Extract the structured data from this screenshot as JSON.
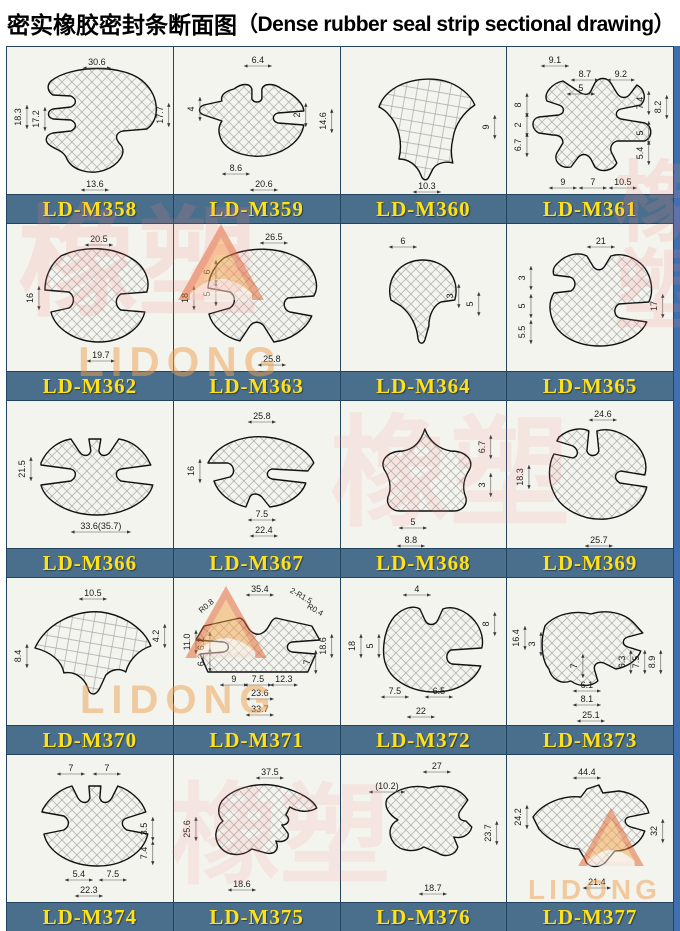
{
  "title": {
    "zh": "密实橡胶密封条断面图",
    "en": "（Dense rubber seal strip sectional drawing）"
  },
  "watermark": {
    "brand": "LIDONG",
    "chars": "橡塑"
  },
  "colors": {
    "label_bar": "#4a6f8c",
    "label_text": "#ffe11a",
    "frame": "#23435e",
    "cell_bg": "#f3f4ee",
    "right_strip": "#3f6fae",
    "hatch": "#a8a8a8",
    "line": "#111111"
  },
  "rows": [
    {
      "cells": [
        {
          "id": "LD-M358",
          "shape": "m358",
          "dims": [
            [
              "30.6",
              90,
              16,
              "h"
            ],
            [
              "18.3",
              14,
              70,
              "v"
            ],
            [
              "17.2",
              32,
              72,
              "v"
            ],
            [
              "17.7",
              156,
              68,
              "v"
            ],
            [
              "13.6",
              88,
              138,
              "h"
            ]
          ]
        },
        {
          "id": "LD-M359",
          "shape": "m359",
          "dims": [
            [
              "6.4",
              84,
              14,
              "h"
            ],
            [
              "4",
              20,
              62,
              "v"
            ],
            [
              "2",
              126,
              68,
              "v"
            ],
            [
              "14.6",
              152,
              74,
              "v"
            ],
            [
              "8.6",
              62,
              122,
              "h"
            ],
            [
              "20.6",
              90,
              138,
              "h"
            ]
          ]
        },
        {
          "id": "LD-M360",
          "shape": "m360",
          "dims": [
            [
              "9",
              148,
              80,
              "v"
            ],
            [
              "10.3",
              86,
              140,
              "h"
            ]
          ]
        },
        {
          "id": "LD-M361",
          "shape": "m361",
          "dims": [
            [
              "9.1",
              48,
              14,
              "h"
            ],
            [
              "8.7",
              78,
              28,
              "h"
            ],
            [
              "9.2",
              114,
              28,
              "h"
            ],
            [
              "5",
              74,
              42,
              "h"
            ],
            [
              "8",
              14,
              58,
              "v"
            ],
            [
              "2",
              14,
              78,
              "v"
            ],
            [
              "6.7",
              14,
              98,
              "v"
            ],
            [
              "7.4",
              136,
              56,
              "v"
            ],
            [
              "8.2",
              154,
              60,
              "v"
            ],
            [
              "5",
              136,
              86,
              "v"
            ],
            [
              "5.4",
              136,
              106,
              "v"
            ],
            [
              "9",
              56,
              136,
              "h"
            ],
            [
              "7",
              86,
              136,
              "h"
            ],
            [
              "10.5",
              116,
              136,
              "h"
            ]
          ]
        }
      ]
    },
    {
      "cells": [
        {
          "id": "LD-M362",
          "shape": "m362",
          "dims": [
            [
              "20.5",
              92,
              16,
              "h"
            ],
            [
              "16",
              26,
              74,
              "v"
            ],
            [
              "19.7",
              94,
              132,
              "h"
            ]
          ]
        },
        {
          "id": "LD-M363",
          "shape": "m363",
          "dims": [
            [
              "26.5",
              100,
              14,
              "h"
            ],
            [
              "6",
              36,
              48,
              "v"
            ],
            [
              "5",
              36,
              70,
              "v"
            ],
            [
              "18",
              14,
              74,
              "v"
            ],
            [
              "25.8",
              98,
              136,
              "h"
            ]
          ]
        },
        {
          "id": "LD-M364",
          "shape": "m364",
          "dims": [
            [
              "6",
              62,
              18,
              "h"
            ],
            [
              "3",
              112,
              72,
              "v"
            ],
            [
              "5",
              132,
              80,
              "v"
            ]
          ]
        },
        {
          "id": "LD-M365",
          "shape": "m365",
          "dims": [
            [
              "21",
              94,
              18,
              "h"
            ],
            [
              "3",
              18,
              54,
              "v"
            ],
            [
              "5",
              18,
              82,
              "v"
            ],
            [
              "5.5",
              18,
              108,
              "v"
            ],
            [
              "17",
              150,
              82,
              "v"
            ]
          ]
        }
      ]
    },
    {
      "cells": [
        {
          "id": "LD-M366",
          "shape": "m366",
          "dims": [
            [
              "21.5",
              18,
              68,
              "v"
            ],
            [
              "33.6(35.7)",
              94,
              126,
              "h"
            ]
          ]
        },
        {
          "id": "LD-M367",
          "shape": "m367",
          "dims": [
            [
              "25.8",
              88,
              16,
              "h"
            ],
            [
              "16",
              20,
              70,
              "v"
            ],
            [
              "7.5",
              88,
              114,
              "h"
            ],
            [
              "22.4",
              90,
              130,
              "h"
            ]
          ]
        },
        {
          "id": "LD-M368",
          "shape": "m368",
          "dims": [
            [
              "6.7",
              144,
              46,
              "v"
            ],
            [
              "3",
              144,
              84,
              "v"
            ],
            [
              "5",
              72,
              122,
              "h"
            ],
            [
              "8.8",
              70,
              140,
              "h"
            ]
          ]
        },
        {
          "id": "LD-M369",
          "shape": "m369",
          "dims": [
            [
              "24.6",
              96,
              14,
              "h"
            ],
            [
              "18.3",
              16,
              76,
              "v"
            ],
            [
              "25.7",
              92,
              140,
              "h"
            ]
          ]
        }
      ]
    },
    {
      "cells": [
        {
          "id": "LD-M370",
          "shape": "m370",
          "dims": [
            [
              "10.5",
              86,
              16,
              "h"
            ],
            [
              "8.4",
              14,
              78,
              "v"
            ],
            [
              "4.2",
              152,
              58,
              "v"
            ]
          ]
        },
        {
          "id": "LD-M371",
          "shape": "m371",
          "dims": [
            [
              "35.4",
              86,
              12,
              "h"
            ],
            [
              "R0.8",
              34,
              30,
              "d",
              -40
            ],
            [
              "2-R1.5",
              126,
              20,
              "d",
              30
            ],
            [
              "R0.4",
              140,
              34,
              "d",
              30
            ],
            [
              "11.0",
              16,
              64,
              "v"
            ],
            [
              "6.2",
              30,
              66,
              "v"
            ],
            [
              "6.2",
              30,
              82,
              "v"
            ],
            [
              "18.6",
              152,
              68,
              "v"
            ],
            [
              "7",
              136,
              84,
              "v"
            ],
            [
              "9",
              60,
              102,
              "h"
            ],
            [
              "7.5",
              84,
              102,
              "h"
            ],
            [
              "12.3",
              110,
              102,
              "h"
            ],
            [
              "23.6",
              86,
              116,
              "h"
            ],
            [
              "33.7",
              86,
              132,
              "h"
            ]
          ]
        },
        {
          "id": "LD-M372",
          "shape": "m372",
          "dims": [
            [
              "4",
              76,
              12,
              "h"
            ],
            [
              "18",
              14,
              68,
              "v"
            ],
            [
              "5",
              32,
              68,
              "v"
            ],
            [
              "8",
              148,
              46,
              "v"
            ],
            [
              "7.5",
              54,
              114,
              "h"
            ],
            [
              "6.5",
              98,
              114,
              "h"
            ],
            [
              "22",
              80,
              134,
              "h"
            ]
          ]
        },
        {
          "id": "LD-M373",
          "shape": "m373",
          "dims": [
            [
              "16.4",
              12,
              60,
              "v"
            ],
            [
              "3",
              28,
              66,
              "v"
            ],
            [
              "7",
              70,
              88,
              "v"
            ],
            [
              "6.3",
              118,
              84,
              "v"
            ],
            [
              "7.5",
              132,
              84,
              "v"
            ],
            [
              "8.9",
              148,
              84,
              "v"
            ],
            [
              "6.1",
              80,
              108,
              "h"
            ],
            [
              "8.1",
              80,
              122,
              "h"
            ],
            [
              "25.1",
              84,
              138,
              "h"
            ]
          ]
        }
      ]
    },
    {
      "cells": [
        {
          "id": "LD-M374",
          "shape": "m374",
          "dims": [
            [
              "7",
              64,
              14,
              "h"
            ],
            [
              "7",
              100,
              14,
              "h"
            ],
            [
              "3.5",
              140,
              74,
              "v"
            ],
            [
              "7.4",
              140,
              98,
              "v"
            ],
            [
              "5.4",
              72,
              120,
              "h"
            ],
            [
              "7.5",
              106,
              120,
              "h"
            ],
            [
              "22.3",
              82,
              136,
              "h"
            ]
          ]
        },
        {
          "id": "LD-M375",
          "shape": "m375",
          "dims": [
            [
              "37.5",
              96,
              18,
              "h"
            ],
            [
              "25.6",
              16,
              74,
              "v"
            ],
            [
              "18.6",
              68,
              130,
              "h"
            ]
          ]
        },
        {
          "id": "LD-M376",
          "shape": "m376",
          "dims": [
            [
              "27",
              96,
              12,
              "h"
            ],
            [
              "(10.2)",
              46,
              32,
              "h"
            ],
            [
              "23.7",
              150,
              78,
              "v"
            ],
            [
              "18.7",
              92,
              134,
              "h"
            ]
          ]
        },
        {
          "id": "LD-M377",
          "shape": "m377",
          "dims": [
            [
              "44.4",
              80,
              18,
              "h"
            ],
            [
              "24.2",
              14,
              62,
              "v"
            ],
            [
              "32",
              150,
              76,
              "v"
            ],
            [
              "21.4",
              90,
              128,
              "h"
            ]
          ]
        }
      ]
    }
  ]
}
